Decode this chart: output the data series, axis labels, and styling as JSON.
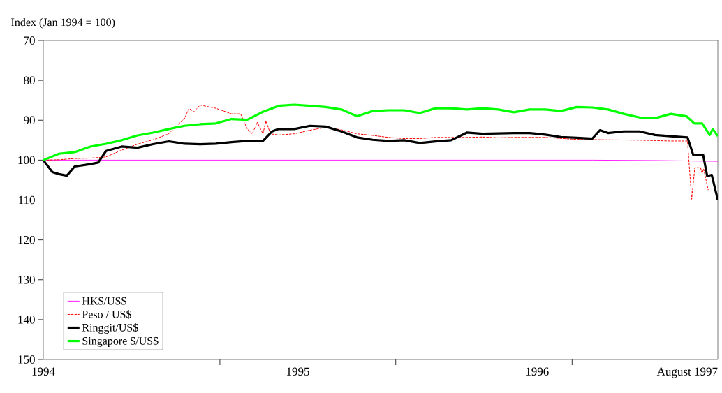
{
  "chart_data": {
    "type": "line",
    "ylabel": "Index  (Jan 1994 = 100)",
    "ylim": [
      150,
      70
    ],
    "yticks": [
      70,
      80,
      90,
      100,
      110,
      120,
      130,
      140,
      150
    ],
    "xlim": [
      "1994-01",
      "1997-08"
    ],
    "xticks": [
      {
        "value": "1994-01",
        "label": "1994"
      },
      {
        "value": "1994-12-09",
        "label": null
      },
      {
        "value": "1995-05-08",
        "label": "1995"
      },
      {
        "value": "1995-11-15",
        "label": null
      },
      {
        "value": "1996-08-16",
        "label": "1996"
      },
      {
        "value": "1996-10-23",
        "label": null
      },
      {
        "value": "1997-08",
        "label": "August 1997"
      }
    ],
    "legend": "bottom left",
    "series": [
      {
        "name": "HK$/US$",
        "color": "#ff00ff",
        "line_style": "solid",
        "x": [
          "1994-01",
          "1994-06",
          "1994-12",
          "1995-06",
          "1995-12",
          "1996-06",
          "1996-12",
          "1997-04",
          "1997-08"
        ],
        "values": [
          100.0,
          100.0,
          100.0,
          100.0,
          100.0,
          100.0,
          100.0,
          100.1,
          100.3
        ]
      },
      {
        "name": "Peso / US$",
        "color": "#ff0000",
        "line_style": "dashed",
        "x": [
          "1994-01",
          "1994-02",
          "1994-03",
          "1994-04",
          "1994-05",
          "1994-06",
          "1994-07",
          "1994-08",
          "1994-09",
          "1994-09-16",
          "1994-10",
          "1994-10-10",
          "1994-10-19",
          "1994-11",
          "1994-12",
          "1995-01",
          "1995-01-19",
          "1995-02",
          "1995-02-10",
          "1995-02-19",
          "1995-03",
          "1995-03-07",
          "1995-03-16",
          "1995-04",
          "1995-05",
          "1995-06",
          "1995-07",
          "1995-08",
          "1995-09",
          "1995-10",
          "1995-11",
          "1995-12",
          "1996-01",
          "1996-02",
          "1996-03",
          "1996-04",
          "1996-05",
          "1996-06",
          "1996-07",
          "1996-09",
          "1996-11",
          "1997-01",
          "1997-03",
          "1997-05",
          "1997-06-03",
          "1997-06-11",
          "1997-06-17",
          "1997-06-28",
          "1997-07-01",
          "1997-07-04",
          "1997-07-13"
        ],
        "values": [
          100,
          99.9,
          99.6,
          99.5,
          99.2,
          97.5,
          96.0,
          94.9,
          93.4,
          91.4,
          89.6,
          87.0,
          87.9,
          86.2,
          87.0,
          88.4,
          88.4,
          92.2,
          93.4,
          90.5,
          93.4,
          90.2,
          93.4,
          93.7,
          93.4,
          92.5,
          91.8,
          92.4,
          93.4,
          93.8,
          94.3,
          94.6,
          94.6,
          94.3,
          94.3,
          94.3,
          94.2,
          94.4,
          94.3,
          94.3,
          94.8,
          94.9,
          95.0,
          95.2,
          95.2,
          109.8,
          101.9,
          101.9,
          103.3,
          102.2,
          107.5
        ]
      },
      {
        "name": "Ringgit/US$",
        "color": "#000000",
        "line_style": "solid",
        "x": [
          "1994-01",
          "1994-01-19",
          "1994-02",
          "1994-02-15",
          "1994-03",
          "1994-04",
          "1994-04-16",
          "1994-05",
          "1994-06",
          "1994-07",
          "1994-08",
          "1994-09",
          "1994-10",
          "1994-11",
          "1994-12",
          "1995-01",
          "1995-02",
          "1995-03",
          "1995-03-19",
          "1995-04",
          "1995-05",
          "1995-06",
          "1995-07",
          "1995-08",
          "1995-09",
          "1995-10",
          "1995-11",
          "1995-12",
          "1996-01",
          "1996-02",
          "1996-03",
          "1996-04",
          "1996-05",
          "1996-06",
          "1996-07",
          "1996-08",
          "1996-09",
          "1996-10",
          "1996-11",
          "1996-12",
          "1996-12-16",
          "1997-01",
          "1997-02",
          "1997-03",
          "1997-04",
          "1997-05",
          "1997-06-03",
          "1997-06-14",
          "1997-07-03",
          "1997-07-11",
          "1997-07-20",
          "1997-08"
        ],
        "values": [
          100,
          103.0,
          103.5,
          103.9,
          101.6,
          101.0,
          100.6,
          97.7,
          96.6,
          96.9,
          96.0,
          95.3,
          95.9,
          96.0,
          95.9,
          95.5,
          95.2,
          95.2,
          92.8,
          92.2,
          92.2,
          91.4,
          91.6,
          92.8,
          94.3,
          94.9,
          95.2,
          95.0,
          95.7,
          95.3,
          95.0,
          93.1,
          93.4,
          93.3,
          93.2,
          93.2,
          93.6,
          94.2,
          94.4,
          94.6,
          92.5,
          93.2,
          92.8,
          92.8,
          93.7,
          94.0,
          94.3,
          98.7,
          98.7,
          104.0,
          103.7,
          110.0
        ]
      },
      {
        "name": "Singapore $/US$",
        "color": "#00ff00",
        "line_style": "solid",
        "x": [
          "1994-01",
          "1994-02",
          "1994-03",
          "1994-04",
          "1994-05",
          "1994-06",
          "1994-07",
          "1994-08",
          "1994-09",
          "1994-10",
          "1994-11",
          "1994-12",
          "1995-01",
          "1995-02",
          "1995-03",
          "1995-04",
          "1995-05",
          "1995-06",
          "1995-07",
          "1995-08",
          "1995-09",
          "1995-10",
          "1995-11",
          "1995-12",
          "1996-01",
          "1996-02",
          "1996-03",
          "1996-04",
          "1996-05",
          "1996-06",
          "1996-07",
          "1996-08",
          "1996-09",
          "1996-10",
          "1996-11",
          "1996-12",
          "1997-01",
          "1997-02",
          "1997-03",
          "1997-04",
          "1997-05",
          "1997-06",
          "1997-06-16",
          "1997-07",
          "1997-07-16",
          "1997-07-22",
          "1997-08"
        ],
        "values": [
          100,
          98.4,
          98.0,
          96.6,
          95.9,
          95.0,
          93.8,
          93.1,
          92.2,
          91.4,
          91.0,
          90.8,
          89.7,
          89.9,
          87.9,
          86.4,
          86.1,
          86.4,
          86.7,
          87.3,
          89.0,
          87.7,
          87.5,
          87.5,
          88.2,
          87.0,
          87.0,
          87.3,
          87.0,
          87.3,
          88.0,
          87.3,
          87.3,
          87.7,
          86.7,
          86.8,
          87.3,
          88.4,
          89.3,
          89.5,
          88.4,
          89.0,
          90.8,
          90.8,
          93.7,
          92.2,
          94.0
        ]
      }
    ]
  }
}
